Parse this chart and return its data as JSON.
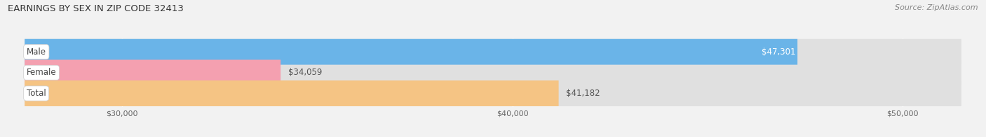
{
  "title": "EARNINGS BY SEX IN ZIP CODE 32413",
  "source": "Source: ZipAtlas.com",
  "categories": [
    "Male",
    "Female",
    "Total"
  ],
  "values": [
    47301,
    34059,
    41182
  ],
  "bar_colors": [
    "#6ab4e8",
    "#f4a0b0",
    "#f5c484"
  ],
  "label_texts": [
    "$47,301",
    "$34,059",
    "$41,182"
  ],
  "label_inside": [
    true,
    false,
    false
  ],
  "xmin": 27500,
  "xmax": 51500,
  "xticks": [
    30000,
    40000,
    50000
  ],
  "xtick_labels": [
    "$30,000",
    "$40,000",
    "$50,000"
  ],
  "background_color": "#f2f2f2",
  "bar_bg_color": "#e0e0e0",
  "bar_height": 0.62,
  "title_fontsize": 9.5,
  "source_fontsize": 8,
  "label_fontsize": 8.5,
  "category_fontsize": 8.5
}
